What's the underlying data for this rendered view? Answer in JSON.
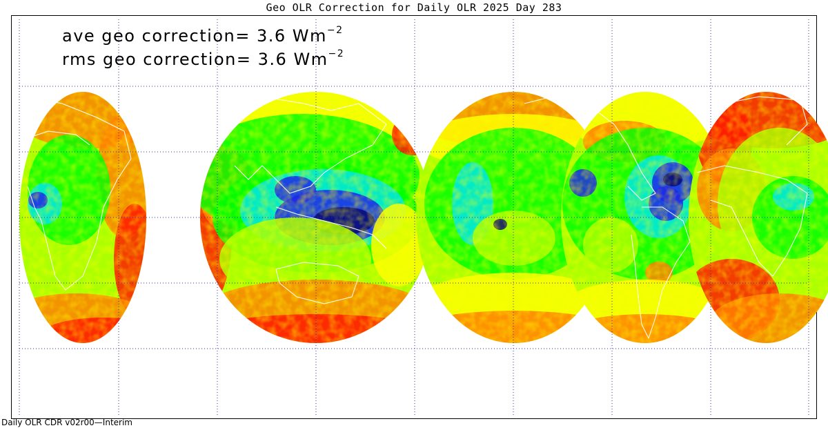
{
  "title": "Geo OLR Correction for Daily OLR 2025 Day 283",
  "annotations": {
    "ave_label": "ave geo correction=",
    "ave_value": "3.6",
    "ave_unit": "Wm",
    "ave_exp": "−2",
    "rms_label": "rms geo correction=",
    "rms_value": "3.6",
    "rms_unit": "Wm",
    "rms_exp": "−2"
  },
  "footer": "Daily OLR CDR v02r00—Interim",
  "colors": {
    "red": "#ff1a00",
    "orange": "#ff8000",
    "yellow": "#ffff00",
    "yellow_green": "#aaff00",
    "green": "#00ff00",
    "cyan": "#00e8e8",
    "blue": "#1f28e6",
    "navy": "#0c0c70",
    "grid": "#3030b0",
    "coast": "#ffffff"
  }
}
